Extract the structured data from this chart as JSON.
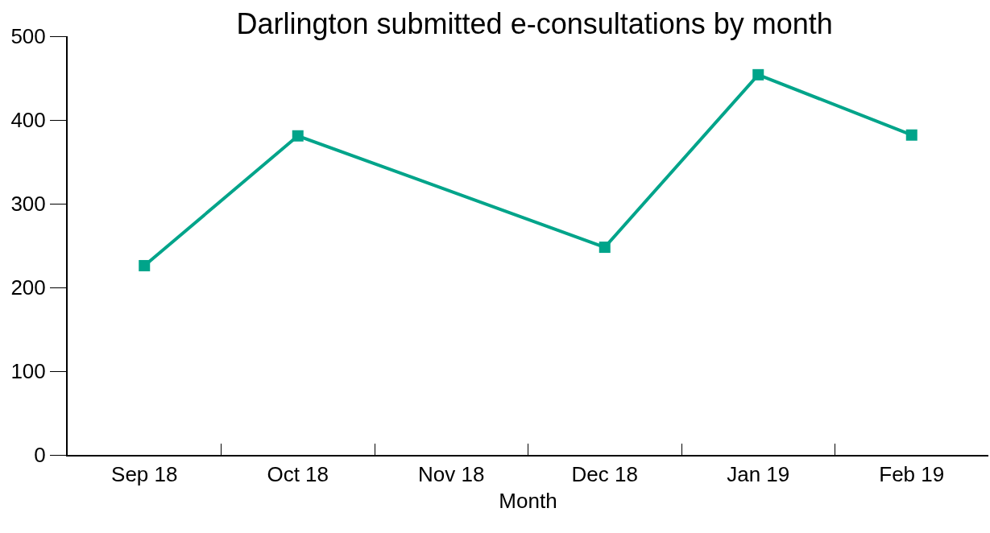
{
  "chart_data": {
    "type": "line",
    "title": "Darlington submitted e-consultations by month",
    "xlabel": "Month",
    "categories": [
      "Sep 18",
      "Oct 18",
      "Nov 18",
      "Dec 18",
      "Jan 19",
      "Feb 19"
    ],
    "series": [
      {
        "color": "#00a48a",
        "values": [
          226,
          381,
          null,
          248,
          454,
          382
        ]
      }
    ],
    "ylim": [
      0,
      500
    ],
    "yticks": [
      0,
      100,
      200,
      300,
      400,
      500
    ],
    "grid": false,
    "legend": false,
    "marker": "square",
    "line_style": "solid"
  }
}
